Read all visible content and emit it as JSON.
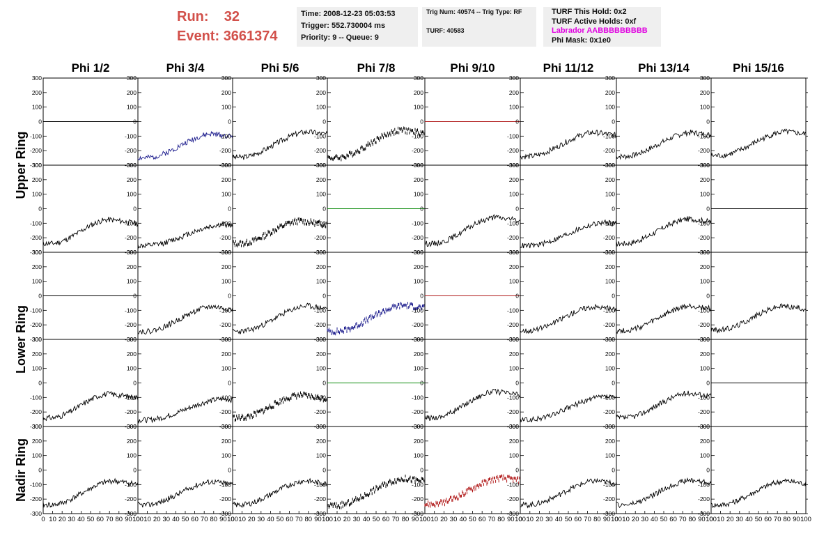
{
  "header": {
    "run_label": "Run:",
    "run_value": "32",
    "event_label": "Event:",
    "event_value": "3661374"
  },
  "info_time": {
    "time": "Time: 2008-12-23 05:03:53",
    "trigger": "Trigger: 552.730004 ms",
    "priority": "Priority: 9 -- Queue: 9"
  },
  "info_trig": {
    "trig": "Trig Num: 40574 -- Trig Type: RF",
    "turf": "TURF: 40583"
  },
  "info_turf": {
    "hold": "TURF This Hold: 0x2",
    "active": "TURF Active Holds: 0xf",
    "labrador": "Labrador AABBBBBBBBB",
    "phimask": "Phi Mask: 0x1e0"
  },
  "colors": {
    "header_red": "#d2504a",
    "labrador_magenta": "#e000e0",
    "info_bg": "#efefef",
    "trace_black": "#000000",
    "trace_blue": "#1a1a8c",
    "trace_red": "#b01818",
    "trace_green": "#0a8a0a"
  },
  "chart_data": {
    "type": "line",
    "columns": [
      "Phi 1/2",
      "Phi 3/4",
      "Phi 5/6",
      "Phi 7/8",
      "Phi 9/10",
      "Phi 11/12",
      "Phi 13/14",
      "Phi 15/16"
    ],
    "ring_labels": [
      "Upper Ring",
      "Lower Ring",
      "Nadir Ring"
    ],
    "ylim": [
      -300,
      300
    ],
    "xlim": [
      0,
      100
    ],
    "y_ticks": [
      -300,
      -200,
      -100,
      0,
      100,
      200,
      300
    ],
    "x_ticks": [
      "0",
      "10",
      "20",
      "30",
      "40",
      "50",
      "60",
      "70",
      "80",
      "90",
      "100"
    ],
    "panels": [
      [
        {
          "style": "flat",
          "color": "#000000"
        },
        {
          "style": "wave",
          "color": "#1a1a8c",
          "peak": 80,
          "low": -250,
          "high": -85,
          "seed": 2
        },
        {
          "style": "wave",
          "color": "#000000",
          "peak": 80,
          "low": -245,
          "high": -70,
          "seed": 3
        },
        {
          "style": "dots",
          "color": "#000000",
          "peak": 78,
          "low": -250,
          "high": -60,
          "seed": 4
        },
        {
          "style": "flat",
          "color": "#b01818"
        },
        {
          "style": "wave",
          "color": "#000000",
          "peak": 78,
          "low": -240,
          "high": -75,
          "seed": 6
        },
        {
          "style": "wave",
          "color": "#000000",
          "peak": 80,
          "low": -240,
          "high": -75,
          "seed": 7
        },
        {
          "style": "wave",
          "color": "#000000",
          "peak": 80,
          "low": -235,
          "high": -70,
          "seed": 8
        }
      ],
      [
        {
          "style": "wave",
          "color": "#000000",
          "peak": 70,
          "low": -240,
          "high": -75,
          "seed": 11
        },
        {
          "style": "wave",
          "color": "#000000",
          "peak": 92,
          "low": -255,
          "high": -110,
          "seed": 12
        },
        {
          "style": "dots",
          "color": "#000000",
          "peak": 72,
          "low": -240,
          "high": -85,
          "seed": 13
        },
        {
          "style": "flat",
          "color": "#0a8a0a"
        },
        {
          "style": "wave",
          "color": "#000000",
          "peak": 75,
          "low": -240,
          "high": -60,
          "seed": 15
        },
        {
          "style": "wave",
          "color": "#000000",
          "peak": 90,
          "low": -255,
          "high": -95,
          "seed": 16
        },
        {
          "style": "wave",
          "color": "#000000",
          "peak": 78,
          "low": -240,
          "high": -70,
          "seed": 17
        },
        {
          "style": "flat",
          "color": "#000000"
        }
      ],
      [
        {
          "style": "flat",
          "color": "#000000"
        },
        {
          "style": "wave",
          "color": "#000000",
          "peak": 80,
          "low": -245,
          "high": -75,
          "seed": 22
        },
        {
          "style": "wave",
          "color": "#000000",
          "peak": 80,
          "low": -245,
          "high": -70,
          "seed": 23
        },
        {
          "style": "dots",
          "color": "#1a1a8c",
          "peak": 80,
          "low": -245,
          "high": -65,
          "seed": 24
        },
        {
          "style": "flat",
          "color": "#b01818"
        },
        {
          "style": "wave",
          "color": "#000000",
          "peak": 78,
          "low": -240,
          "high": -75,
          "seed": 26
        },
        {
          "style": "wave",
          "color": "#000000",
          "peak": 80,
          "low": -240,
          "high": -70,
          "seed": 27
        },
        {
          "style": "wave",
          "color": "#000000",
          "peak": 78,
          "low": -235,
          "high": -70,
          "seed": 28
        }
      ],
      [
        {
          "style": "wave",
          "color": "#000000",
          "peak": 70,
          "low": -240,
          "high": -75,
          "seed": 31
        },
        {
          "style": "wave",
          "color": "#000000",
          "peak": 92,
          "low": -255,
          "high": -110,
          "seed": 32
        },
        {
          "style": "dots",
          "color": "#000000",
          "peak": 72,
          "low": -240,
          "high": -85,
          "seed": 33
        },
        {
          "style": "flat",
          "color": "#0a8a0a"
        },
        {
          "style": "wave",
          "color": "#000000",
          "peak": 75,
          "low": -240,
          "high": -60,
          "seed": 35
        },
        {
          "style": "wave",
          "color": "#000000",
          "peak": 90,
          "low": -255,
          "high": -95,
          "seed": 36
        },
        {
          "style": "wave",
          "color": "#000000",
          "peak": 78,
          "low": -240,
          "high": -70,
          "seed": 37
        },
        {
          "style": "flat",
          "color": "#000000"
        }
      ],
      [
        {
          "style": "wave",
          "color": "#000000",
          "peak": 75,
          "low": -240,
          "high": -75,
          "seed": 41
        },
        {
          "style": "wave",
          "color": "#000000",
          "peak": 80,
          "low": -240,
          "high": -80,
          "seed": 42
        },
        {
          "style": "wave",
          "color": "#000000",
          "peak": 78,
          "low": -240,
          "high": -75,
          "seed": 43
        },
        {
          "style": "dots",
          "color": "#000000",
          "peak": 80,
          "low": -245,
          "high": -60,
          "seed": 44
        },
        {
          "style": "dots",
          "color": "#b01818",
          "peak": 82,
          "low": -235,
          "high": -55,
          "seed": 45
        },
        {
          "style": "wave",
          "color": "#000000",
          "peak": 80,
          "low": -240,
          "high": -75,
          "seed": 46
        },
        {
          "style": "wave",
          "color": "#000000",
          "peak": 80,
          "low": -240,
          "high": -70,
          "seed": 47
        },
        {
          "style": "wave",
          "color": "#000000",
          "peak": 80,
          "low": -240,
          "high": -75,
          "seed": 48
        }
      ]
    ]
  }
}
